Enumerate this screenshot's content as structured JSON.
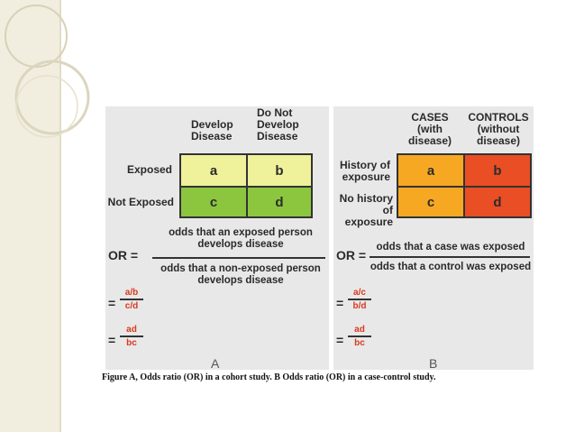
{
  "panel_a": {
    "col_headers": [
      "Develop\nDisease",
      "Do Not\nDevelop\nDisease"
    ],
    "row_headers": [
      "Exposed",
      "Not Exposed"
    ],
    "cells": [
      "a",
      "b",
      "c",
      "d"
    ],
    "or_label": "OR =",
    "numerator": "odds that an exposed person\ndevelops disease",
    "denominator": "odds that a non-exposed person\ndevelops disease",
    "frac1_num": "a/b",
    "frac1_den": "c/d",
    "frac2_num": "ad",
    "frac2_den": "bc",
    "equals": "=",
    "letter": "A"
  },
  "panel_b": {
    "col_headers": [
      "CASES\n(with\ndisease)",
      "CONTROLS\n(without\ndisease)"
    ],
    "row_headers": [
      "History of\nexposure",
      "No history\nof exposure"
    ],
    "cells": [
      "a",
      "b",
      "c",
      "d"
    ],
    "or_label": "OR =",
    "numerator": "odds that a case was exposed",
    "denominator": "odds that a control was exposed",
    "frac1_num": "a/c",
    "frac1_den": "b/d",
    "frac2_num": "ad",
    "frac2_den": "bc",
    "equals": "=",
    "letter": "B"
  },
  "caption": "Figure  A, Odds ratio (OR) in a cohort study. B Odds ratio (OR) in a case-control study.",
  "colors": {
    "a_yellow_light": "#eff19b",
    "a_green": "#8cc63f",
    "b_orange": "#f7a823",
    "b_red": "#e94e24"
  }
}
